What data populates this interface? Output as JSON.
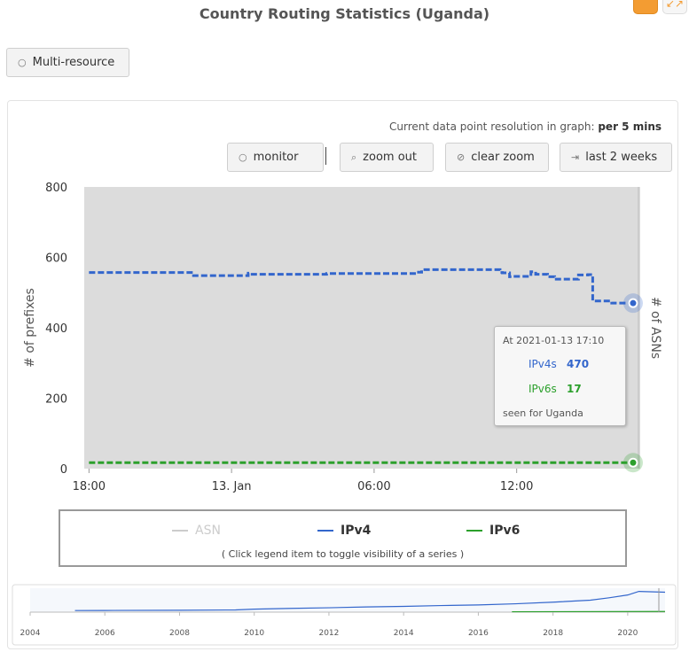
{
  "page": {
    "title": "Country Routing Statistics (Uganda)",
    "multi_resource_label": "Multi-resource",
    "resolution_prefix": "Current data point resolution in graph:",
    "resolution_value": "per 5 mins"
  },
  "toolbar": {
    "monitor_label": "monitor",
    "zoom_out_label": "zoom out",
    "clear_zoom_label": "clear zoom",
    "last_two_weeks_label": "last 2 weeks"
  },
  "colors": {
    "ipv4": "#3366cc",
    "ipv6": "#2ca02c",
    "asn": "#cccccc",
    "plot_bg": "#dcdcdc",
    "accent": "#f39c32"
  },
  "tooltip": {
    "header": "At 2021-01-13 17:10",
    "ipv4_label": "IPv4s",
    "ipv4_value": "470",
    "ipv6_label": "IPv6s",
    "ipv6_value": "17",
    "footer": "seen for Uganda"
  },
  "legend": {
    "hint": "( Click legend item to toggle visibility of a series )"
  },
  "chart_data": [
    {
      "type": "line",
      "xlabel": "",
      "ylabel": "# of prefixes",
      "y2label": "# of ASNs",
      "ylim": [
        0,
        800
      ],
      "yticks": [
        "0",
        "200",
        "400",
        "600",
        "800"
      ],
      "x_tick_labels": [
        "18:00",
        "13. Jan",
        "06:00",
        "12:00"
      ],
      "x_ticks_hours": [
        0,
        6,
        12,
        18
      ],
      "xlim_hours": [
        -0.2,
        23.2
      ],
      "legend_position": "bottom",
      "grid": false,
      "series": [
        {
          "name": "ASN",
          "visible": false,
          "x": [],
          "y": []
        },
        {
          "name": "IPv4",
          "x": [
            0,
            4.3,
            4.4,
            6.6,
            6.7,
            6.8,
            10.0,
            13.8,
            14.0,
            15.0,
            16.8,
            17.3,
            17.4,
            17.7,
            17.8,
            18.6,
            18.8,
            19.3,
            19.6,
            20.3,
            20.6,
            21.0,
            21.2,
            22.0,
            22.9
          ],
          "y": [
            557,
            557,
            548,
            548,
            555,
            552,
            554,
            558,
            565,
            565,
            565,
            557,
            556,
            545,
            546,
            559,
            552,
            545,
            538,
            538,
            550,
            551,
            476,
            470,
            470
          ]
        },
        {
          "name": "IPv6",
          "x": [
            0,
            22.9
          ],
          "y": [
            17,
            17
          ]
        }
      ]
    },
    {
      "type": "area",
      "role": "navigator",
      "x_tick_labels": [
        "2004",
        "2006",
        "2008",
        "2010",
        "2012",
        "2014",
        "2016",
        "2018",
        "2020"
      ],
      "xlim": [
        2004,
        2021
      ],
      "series": [
        {
          "name": "IPv4",
          "x": [
            2005.2,
            2006,
            2008,
            2009.5,
            2010,
            2011,
            2012,
            2013,
            2014,
            2015,
            2016,
            2017,
            2018,
            2019,
            2019.5,
            2020,
            2020.3,
            2021
          ],
          "y": [
            40,
            42,
            48,
            55,
            75,
            95,
            110,
            130,
            145,
            165,
            180,
            210,
            250,
            300,
            360,
            430,
            520,
            500
          ]
        },
        {
          "name": "IPv6",
          "x": [
            2016.9,
            2021
          ],
          "y": [
            10,
            17
          ]
        }
      ]
    }
  ]
}
